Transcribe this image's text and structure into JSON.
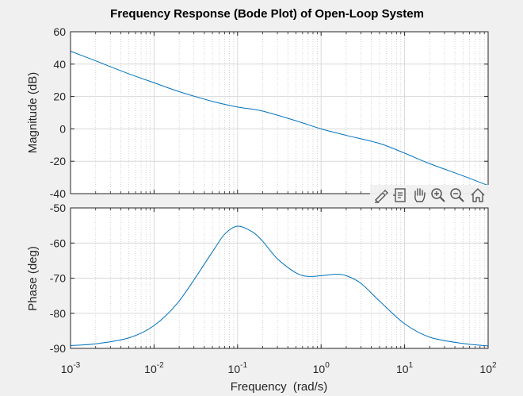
{
  "chart_data": {
    "type": "line",
    "title": "Frequency Response (Bode Plot) of Open-Loop System",
    "xlabel": "Frequency  (rad/s)",
    "xscale": "log",
    "xlim": [
      0.001,
      100
    ],
    "x_tick_labels": [
      {
        "base": "10",
        "exp": "-3"
      },
      {
        "base": "10",
        "exp": "-2"
      },
      {
        "base": "10",
        "exp": "-1"
      },
      {
        "base": "10",
        "exp": "0"
      },
      {
        "base": "10",
        "exp": "1"
      },
      {
        "base": "10",
        "exp": "2"
      }
    ],
    "line_color": "#0072bd",
    "grid": true,
    "panels": [
      {
        "name": "magnitude",
        "ylabel": "Magnitude (dB)",
        "ylim": [
          -40,
          60
        ],
        "yticks": [
          60,
          40,
          20,
          0,
          -20,
          -40
        ],
        "x": [
          0.001,
          0.002,
          0.005,
          0.01,
          0.02,
          0.05,
          0.1,
          0.2,
          0.5,
          1,
          2,
          5,
          10,
          20,
          50,
          100
        ],
        "y": [
          48,
          42,
          34,
          28.5,
          23,
          17,
          13.5,
          11,
          5,
          0,
          -4,
          -9,
          -15,
          -21.5,
          -29,
          -35
        ]
      },
      {
        "name": "phase",
        "ylabel": "Phase (deg)",
        "ylim": [
          -90,
          -50
        ],
        "yticks": [
          -50,
          -60,
          -70,
          -80,
          -90
        ],
        "x": [
          0.001,
          0.002,
          0.005,
          0.01,
          0.02,
          0.05,
          0.07,
          0.1,
          0.15,
          0.2,
          0.3,
          0.5,
          0.7,
          1,
          1.5,
          2,
          3,
          5,
          10,
          20,
          50,
          100
        ],
        "y": [
          -89.2,
          -88.7,
          -87,
          -83.5,
          -76.5,
          -62.5,
          -57.5,
          -55.2,
          -56.8,
          -59.5,
          -64.5,
          -68.5,
          -69.5,
          -69.3,
          -68.9,
          -69.3,
          -71.5,
          -76.5,
          -83,
          -86.8,
          -88.6,
          -89.3
        ]
      }
    ]
  },
  "toolbar": {
    "icons": [
      "brush-edit-icon",
      "data-tips-icon",
      "pan-hand-icon",
      "zoom-in-icon",
      "zoom-out-icon",
      "home-icon"
    ]
  }
}
